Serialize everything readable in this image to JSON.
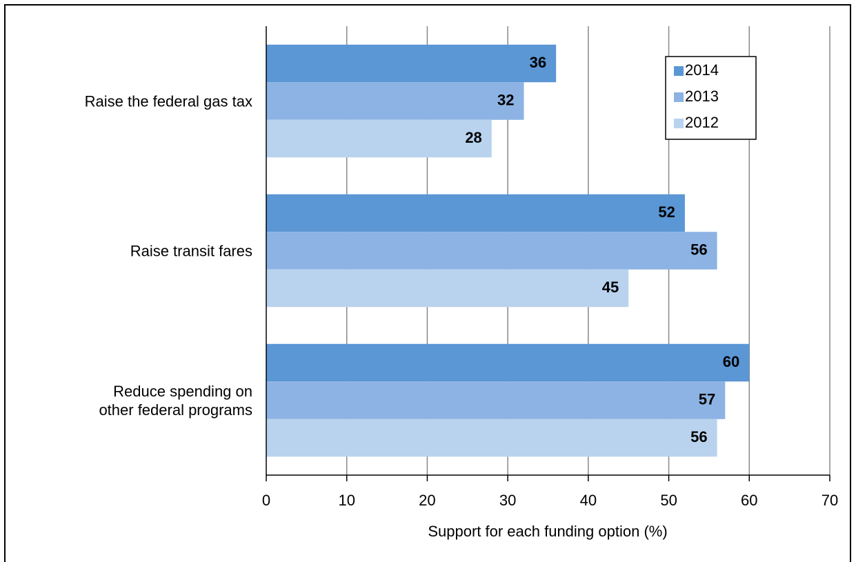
{
  "chart_data": {
    "type": "hbar",
    "xlabel": "Support for each funding option (%)",
    "categories": [
      "Raise the federal gas tax",
      "Raise transit fares",
      "Reduce spending on\nother federal programs"
    ],
    "series": [
      {
        "name": "2014",
        "color": "#5b96d5",
        "values": [
          36,
          52,
          60
        ]
      },
      {
        "name": "2013",
        "color": "#8cb3e3",
        "values": [
          32,
          56,
          57
        ]
      },
      {
        "name": "2012",
        "color": "#b9d3ee",
        "values": [
          28,
          45,
          56
        ]
      }
    ],
    "xlim": [
      0,
      70
    ],
    "xticks": [
      0,
      10,
      20,
      30,
      40,
      50,
      60,
      70
    ],
    "grid": true,
    "legend": "upper right"
  }
}
